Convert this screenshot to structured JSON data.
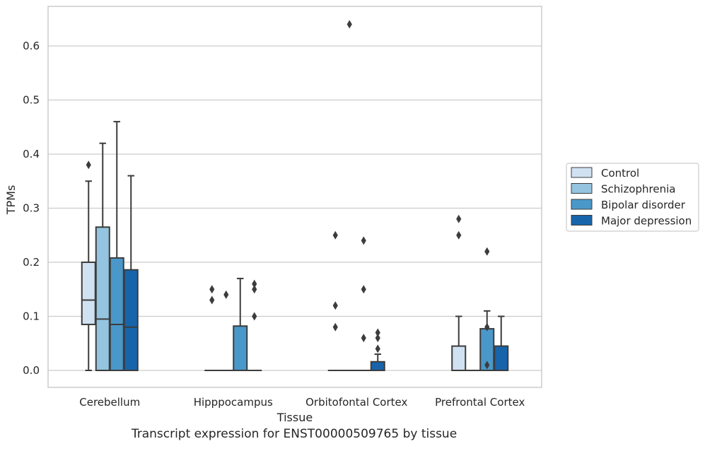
{
  "chart_data": {
    "type": "box",
    "xlabel": "Tissue",
    "ylabel": "TPMs",
    "ylim": [
      -0.032,
      0.675
    ],
    "yticks": [
      0.0,
      0.1,
      0.2,
      0.3,
      0.4,
      0.5,
      0.6
    ],
    "ytick_labels": [
      "0.0",
      "0.1",
      "0.2",
      "0.3",
      "0.4",
      "0.5",
      "0.6"
    ],
    "grid": "horizontal",
    "legend_position": "right",
    "categories": [
      "Cerebellum",
      "Hipppocampus",
      "Orbitofontal Cortex",
      "Prefrontal Cortex"
    ],
    "series": [
      {
        "name": "Control",
        "color": "#d0e1f2",
        "boxes": [
          {
            "whisker_low": 0.0,
            "q1": 0.085,
            "median": 0.13,
            "q3": 0.2,
            "whisker_high": 0.35,
            "outliers": [
              0.38
            ]
          },
          {
            "whisker_low": 0.0,
            "q1": 0.0,
            "median": 0.0,
            "q3": 0.0,
            "whisker_high": 0.0,
            "outliers": [
              0.13,
              0.15
            ]
          },
          {
            "whisker_low": 0.0,
            "q1": 0.0,
            "median": 0.0,
            "q3": 0.0,
            "whisker_high": 0.0,
            "outliers": [
              0.08,
              0.12,
              0.25
            ]
          },
          {
            "whisker_low": 0.0,
            "q1": 0.0,
            "median": 0.0,
            "q3": 0.045,
            "whisker_high": 0.1,
            "outliers": [
              0.25,
              0.28
            ]
          }
        ]
      },
      {
        "name": "Schizophrenia",
        "color": "#94c4df",
        "boxes": [
          {
            "whisker_low": 0.0,
            "q1": 0.0,
            "median": 0.095,
            "q3": 0.265,
            "whisker_high": 0.42,
            "outliers": []
          },
          {
            "whisker_low": 0.0,
            "q1": 0.0,
            "median": 0.0,
            "q3": 0.0,
            "whisker_high": 0.0,
            "outliers": [
              0.14
            ]
          },
          {
            "whisker_low": 0.0,
            "q1": 0.0,
            "median": 0.0,
            "q3": 0.0,
            "whisker_high": 0.0,
            "outliers": [
              0.64
            ]
          },
          {
            "whisker_low": 0.0,
            "q1": 0.0,
            "median": 0.0,
            "q3": 0.0,
            "whisker_high": 0.0,
            "outliers": []
          }
        ]
      },
      {
        "name": "Bipolar disorder",
        "color": "#4a98c9",
        "boxes": [
          {
            "whisker_low": 0.0,
            "q1": 0.0,
            "median": 0.085,
            "q3": 0.208,
            "whisker_high": 0.46,
            "outliers": []
          },
          {
            "whisker_low": 0.0,
            "q1": 0.0,
            "median": 0.0,
            "q3": 0.082,
            "whisker_high": 0.17,
            "outliers": []
          },
          {
            "whisker_low": 0.0,
            "q1": 0.0,
            "median": 0.0,
            "q3": 0.0,
            "whisker_high": 0.0,
            "outliers": [
              0.06,
              0.15,
              0.24
            ]
          },
          {
            "whisker_low": 0.0,
            "q1": 0.0,
            "median": 0.0,
            "q3": 0.077,
            "whisker_high": 0.11,
            "outliers": [
              0.01,
              0.08,
              0.22
            ]
          }
        ]
      },
      {
        "name": "Major depression",
        "color": "#1764ab",
        "boxes": [
          {
            "whisker_low": 0.0,
            "q1": 0.0,
            "median": 0.08,
            "q3": 0.186,
            "whisker_high": 0.36,
            "outliers": []
          },
          {
            "whisker_low": 0.0,
            "q1": 0.0,
            "median": 0.0,
            "q3": 0.0,
            "whisker_high": 0.0,
            "outliers": [
              0.1,
              0.15,
              0.16
            ]
          },
          {
            "whisker_low": 0.0,
            "q1": 0.0,
            "median": 0.0,
            "q3": 0.016,
            "whisker_high": 0.03,
            "outliers": [
              0.04,
              0.06,
              0.07
            ]
          },
          {
            "whisker_low": 0.0,
            "q1": 0.0,
            "median": 0.0,
            "q3": 0.045,
            "whisker_high": 0.1,
            "outliers": []
          }
        ]
      }
    ],
    "caption": "Transcript expression for ENST00000509765 by tissue"
  }
}
